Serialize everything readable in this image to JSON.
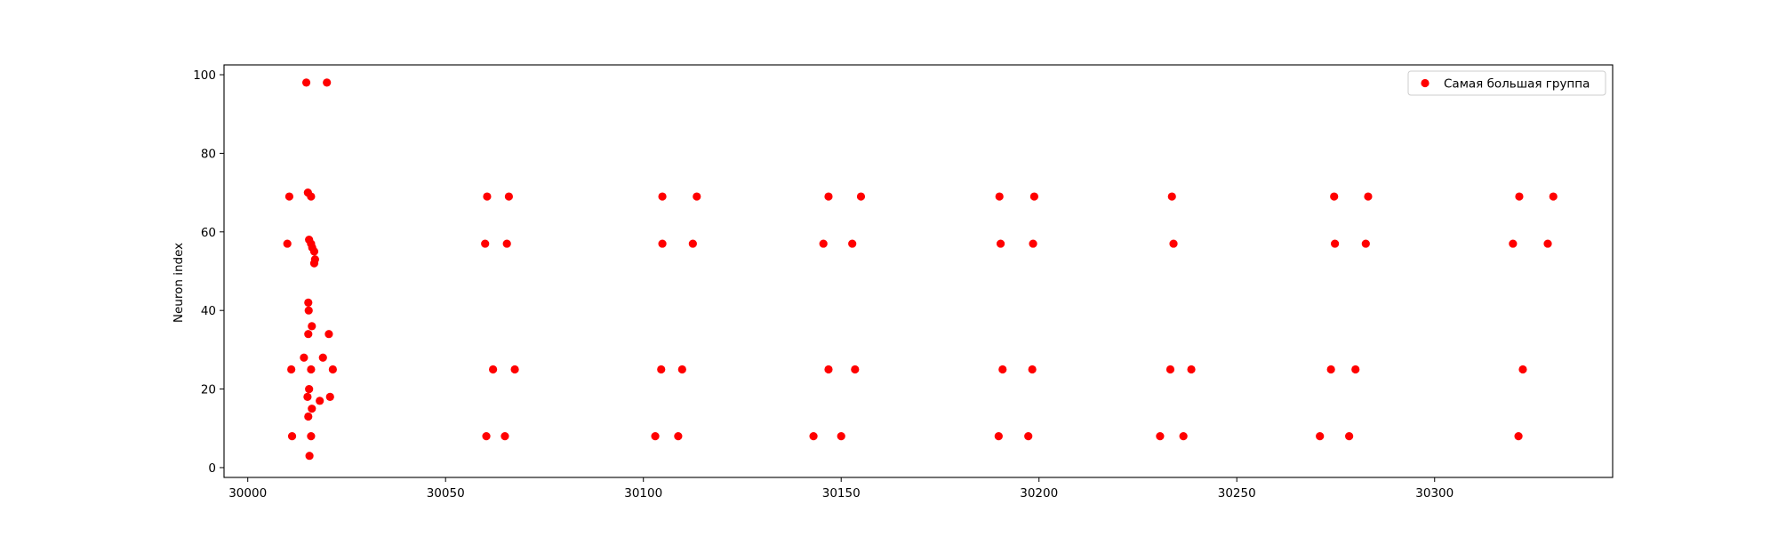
{
  "chart_data": {
    "type": "scatter",
    "title": "",
    "xlabel": "",
    "ylabel": "Neuron index",
    "xlim": [
      29994,
      30345
    ],
    "ylim": [
      -2.5,
      102.5
    ],
    "xticks": [
      30000,
      30050,
      30100,
      30150,
      30200,
      30250,
      30300
    ],
    "yticks": [
      0,
      20,
      40,
      60,
      80,
      100
    ],
    "grid": false,
    "legend": {
      "position": "top-right",
      "entries": [
        "Самая большая группа"
      ]
    },
    "series": [
      {
        "name": "Самая большая группа",
        "color": "#ff0000",
        "points": [
          [
            30014.8,
            98
          ],
          [
            30020.0,
            98
          ],
          [
            30010.5,
            69
          ],
          [
            30015.2,
            70
          ],
          [
            30016.0,
            69
          ],
          [
            30010.0,
            57
          ],
          [
            30015.5,
            58
          ],
          [
            30016.0,
            57
          ],
          [
            30016.3,
            56
          ],
          [
            30016.8,
            55
          ],
          [
            30017.0,
            53
          ],
          [
            30016.8,
            52
          ],
          [
            30015.3,
            42
          ],
          [
            30015.4,
            40
          ],
          [
            30016.2,
            36
          ],
          [
            30015.3,
            34
          ],
          [
            30020.5,
            34
          ],
          [
            30014.2,
            28
          ],
          [
            30019.0,
            28
          ],
          [
            30011.0,
            25
          ],
          [
            30016.0,
            25
          ],
          [
            30021.5,
            25
          ],
          [
            30015.5,
            20
          ],
          [
            30015.1,
            18
          ],
          [
            30020.8,
            18
          ],
          [
            30018.2,
            17
          ],
          [
            30016.2,
            15
          ],
          [
            30015.3,
            13
          ],
          [
            30011.2,
            8
          ],
          [
            30016.0,
            8
          ],
          [
            30015.6,
            3
          ],
          [
            30060.5,
            69
          ],
          [
            30066.0,
            69
          ],
          [
            30060.0,
            57
          ],
          [
            30065.5,
            57
          ],
          [
            30062.0,
            25
          ],
          [
            30067.5,
            25
          ],
          [
            30060.3,
            8
          ],
          [
            30065.0,
            8
          ],
          [
            30104.8,
            69
          ],
          [
            30113.5,
            69
          ],
          [
            30104.8,
            57
          ],
          [
            30112.5,
            57
          ],
          [
            30104.5,
            25
          ],
          [
            30109.8,
            25
          ],
          [
            30103.0,
            8
          ],
          [
            30108.8,
            8
          ],
          [
            30146.8,
            69
          ],
          [
            30155.0,
            69
          ],
          [
            30145.5,
            57
          ],
          [
            30152.8,
            57
          ],
          [
            30146.8,
            25
          ],
          [
            30153.5,
            25
          ],
          [
            30143.0,
            8
          ],
          [
            30150.0,
            8
          ],
          [
            30190.0,
            69
          ],
          [
            30198.8,
            69
          ],
          [
            30190.3,
            57
          ],
          [
            30198.5,
            57
          ],
          [
            30190.8,
            25
          ],
          [
            30198.3,
            25
          ],
          [
            30189.8,
            8
          ],
          [
            30197.3,
            8
          ],
          [
            30233.6,
            69
          ],
          [
            30234.0,
            57
          ],
          [
            30233.2,
            25
          ],
          [
            30238.5,
            25
          ],
          [
            30230.6,
            8
          ],
          [
            30236.5,
            8
          ],
          [
            30274.6,
            69
          ],
          [
            30283.2,
            69
          ],
          [
            30274.8,
            57
          ],
          [
            30282.6,
            57
          ],
          [
            30273.8,
            25
          ],
          [
            30280.0,
            25
          ],
          [
            30271.0,
            8
          ],
          [
            30278.4,
            8
          ],
          [
            30321.4,
            69
          ],
          [
            30330.0,
            69
          ],
          [
            30319.8,
            57
          ],
          [
            30328.6,
            57
          ],
          [
            30322.3,
            25
          ],
          [
            30321.2,
            8
          ]
        ]
      }
    ]
  }
}
